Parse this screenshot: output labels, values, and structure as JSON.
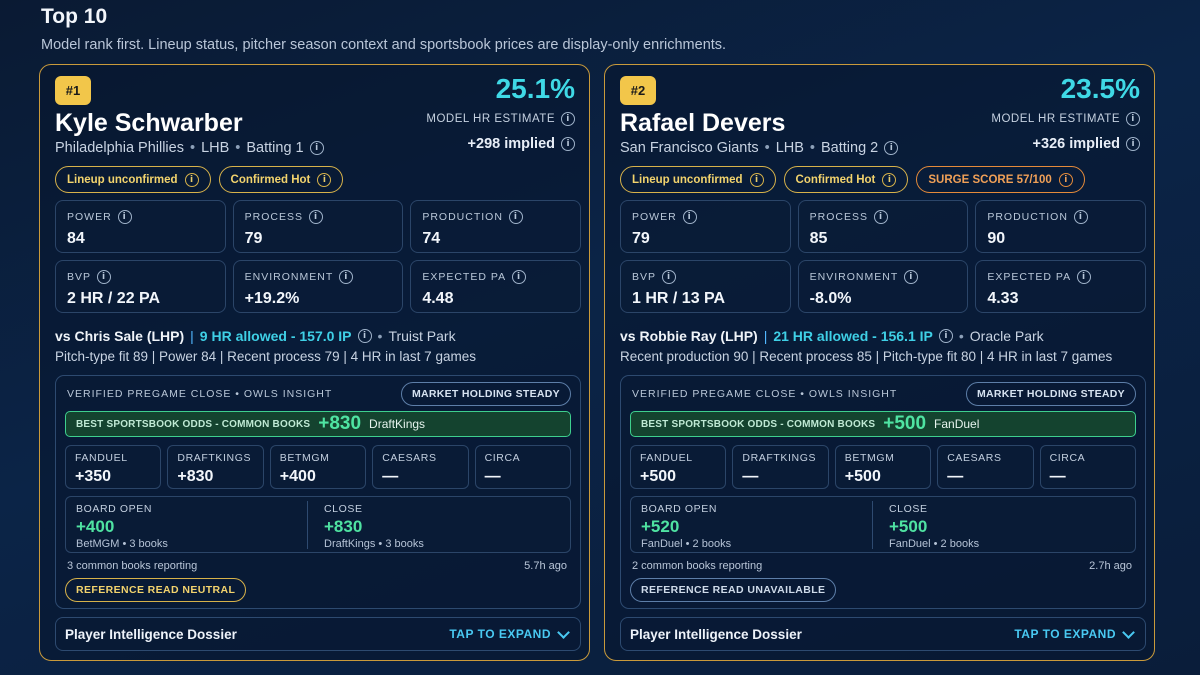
{
  "header": {
    "title": "Top 10",
    "subtitle": "Model rank first. Lineup status, pitcher season context and sportsbook prices are display-only enrichments."
  },
  "cards": [
    {
      "rank": "#1",
      "name": "Kyle Schwarber",
      "team": "Philadelphia Phillies",
      "hand": "LHB",
      "batting": "Batting 1",
      "hr_pct": "25.1%",
      "hr_label": "MODEL HR ESTIMATE",
      "implied": "+298 implied",
      "pills": {
        "lineup": "Lineup unconfirmed",
        "hot": "Confirmed Hot",
        "surge": ""
      },
      "stats": {
        "power": {
          "label": "POWER",
          "value": "84"
        },
        "process": {
          "label": "PROCESS",
          "value": "79"
        },
        "production": {
          "label": "PRODUCTION",
          "value": "74"
        },
        "bvp": {
          "label": "BVP",
          "value": "2 HR / 22 PA"
        },
        "environment": {
          "label": "ENVIRONMENT",
          "value": "+19.2%"
        },
        "expected_pa": {
          "label": "EXPECTED PA",
          "value": "4.48"
        }
      },
      "matchup": {
        "opponent": "vs Chris Sale (LHP)",
        "allowed": "9 HR allowed - 157.0 IP",
        "park": "Truist Park"
      },
      "trends": "Pitch-type fit 89 | Power 84 | Recent process 79 | 4 HR in last 7 games",
      "odds": {
        "heading": "VERIFIED PREGAME CLOSE • OWLS INSIGHT",
        "market": "MARKET HOLDING STEADY",
        "best_label": "BEST SPORTSBOOK ODDS - COMMON BOOKS",
        "best_odds": "+830",
        "best_book": "DraftKings",
        "books": [
          {
            "name": "FANDUEL",
            "price": "+350"
          },
          {
            "name": "DRAFTKINGS",
            "price": "+830"
          },
          {
            "name": "BETMGM",
            "price": "+400"
          },
          {
            "name": "CAESARS",
            "price": "—"
          },
          {
            "name": "CIRCA",
            "price": "—"
          }
        ],
        "open": {
          "label": "BOARD OPEN",
          "price": "+400",
          "sub": "BetMGM • 3 books"
        },
        "close": {
          "label": "CLOSE",
          "price": "+830",
          "sub": "DraftKings • 3 books"
        },
        "reporting": "3 common books reporting",
        "ago": "5.7h ago",
        "reference": "REFERENCE READ NEUTRAL"
      },
      "dossier": {
        "title": "Player Intelligence Dossier",
        "expand": "TAP TO EXPAND"
      }
    },
    {
      "rank": "#2",
      "name": "Rafael Devers",
      "team": "San Francisco Giants",
      "hand": "LHB",
      "batting": "Batting 2",
      "hr_pct": "23.5%",
      "hr_label": "MODEL HR ESTIMATE",
      "implied": "+326 implied",
      "pills": {
        "lineup": "Lineup unconfirmed",
        "hot": "Confirmed Hot",
        "surge": "SURGE SCORE 57/100"
      },
      "stats": {
        "power": {
          "label": "POWER",
          "value": "79"
        },
        "process": {
          "label": "PROCESS",
          "value": "85"
        },
        "production": {
          "label": "PRODUCTION",
          "value": "90"
        },
        "bvp": {
          "label": "BVP",
          "value": "1 HR / 13 PA"
        },
        "environment": {
          "label": "ENVIRONMENT",
          "value": "-8.0%"
        },
        "expected_pa": {
          "label": "EXPECTED PA",
          "value": "4.33"
        }
      },
      "matchup": {
        "opponent": "vs Robbie Ray (LHP)",
        "allowed": "21 HR allowed - 156.1 IP",
        "park": "Oracle Park"
      },
      "trends": "Recent production 90 | Recent process 85 | Pitch-type fit 80 | 4 HR in last 7 games",
      "odds": {
        "heading": "VERIFIED PREGAME CLOSE • OWLS INSIGHT",
        "market": "MARKET HOLDING STEADY",
        "best_label": "BEST SPORTSBOOK ODDS - COMMON BOOKS",
        "best_odds": "+500",
        "best_book": "FanDuel",
        "books": [
          {
            "name": "FANDUEL",
            "price": "+500"
          },
          {
            "name": "DRAFTKINGS",
            "price": "—"
          },
          {
            "name": "BETMGM",
            "price": "+500"
          },
          {
            "name": "CAESARS",
            "price": "—"
          },
          {
            "name": "CIRCA",
            "price": "—"
          }
        ],
        "open": {
          "label": "BOARD OPEN",
          "price": "+520",
          "sub": "FanDuel • 2 books"
        },
        "close": {
          "label": "CLOSE",
          "price": "+500",
          "sub": "FanDuel • 2 books"
        },
        "reporting": "2 common books reporting",
        "ago": "2.7h ago",
        "reference": "REFERENCE READ UNAVAILABLE"
      },
      "dossier": {
        "title": "Player Intelligence Dossier",
        "expand": "TAP TO EXPAND"
      }
    }
  ]
}
